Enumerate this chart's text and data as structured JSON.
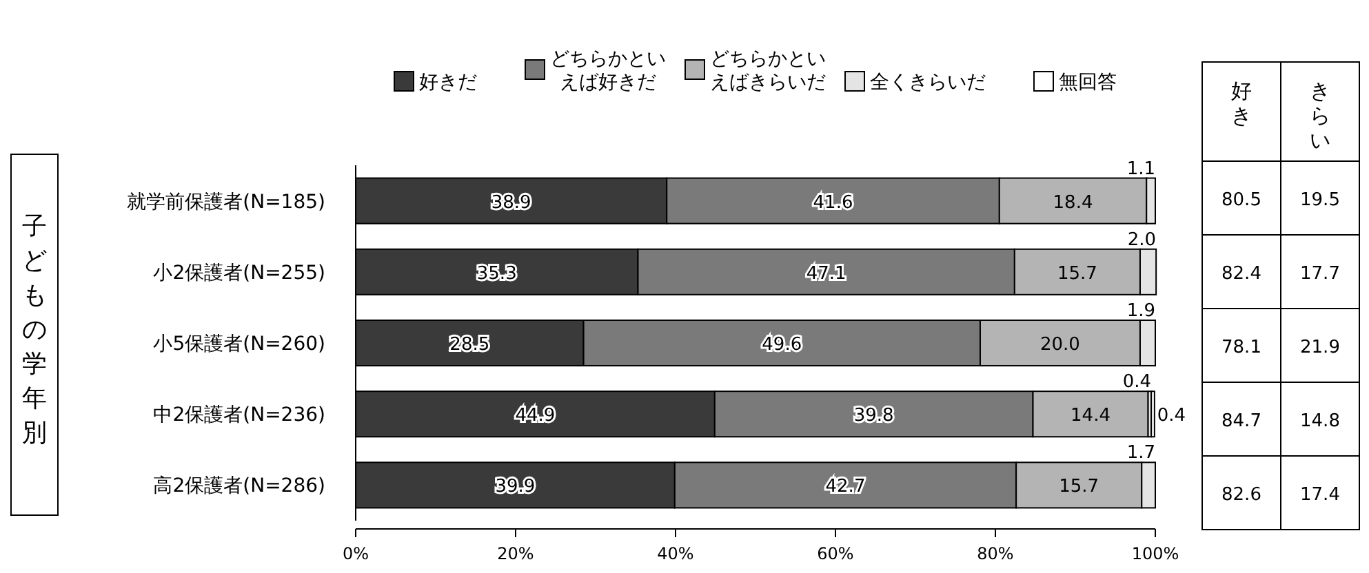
{
  "chart_data": [
    {
      "type": "bar",
      "orientation": "horizontal",
      "stacked": true,
      "ylabel": "子どもの学年別",
      "categories": [
        "就学前保護者(N=185)",
        "小2保護者(N=255)",
        "小5保護者(N=260)",
        "中2保護者(N=236)",
        "高2保護者(N=286)"
      ],
      "series": [
        {
          "name": "好きだ",
          "color": "#3a3a3a",
          "values": [
            38.9,
            35.3,
            28.5,
            44.9,
            39.9
          ],
          "value_labels": [
            "38.9",
            "35.3",
            "28.5",
            "44.9",
            "39.9"
          ]
        },
        {
          "name": "どちらかといえば好きだ",
          "color": "#7a7a7a",
          "values": [
            41.6,
            47.1,
            49.6,
            39.8,
            42.7
          ],
          "value_labels": [
            "41.6",
            "47.1",
            "49.6",
            "39.8",
            "42.7"
          ]
        },
        {
          "name": "どちらかといえばきらいだ",
          "color": "#b4b4b4",
          "values": [
            18.4,
            15.7,
            20.0,
            14.4,
            15.7
          ],
          "value_labels": [
            "18.4",
            "15.7",
            "20.0",
            "14.4",
            "15.7"
          ]
        },
        {
          "name": "全くきらいだ",
          "color": "#e4e4e4",
          "values": [
            1.1,
            2.0,
            1.9,
            0.4,
            1.7
          ],
          "value_labels": [
            "1.1",
            "2.0",
            "1.9",
            "0.4",
            "1.7"
          ]
        },
        {
          "name": "無回答",
          "color": "#ffffff",
          "values": [
            null,
            null,
            null,
            0.4,
            null
          ],
          "value_labels": [
            null,
            null,
            null,
            "0.4",
            null
          ]
        }
      ],
      "xlim": [
        0,
        100
      ],
      "xticks": [
        {
          "value": 0,
          "label": "0%"
        },
        {
          "value": 20,
          "label": "20%"
        },
        {
          "value": 40,
          "label": "40%"
        },
        {
          "value": 60,
          "label": "60%"
        },
        {
          "value": 80,
          "label": "80%"
        },
        {
          "value": 100,
          "label": "100%"
        }
      ],
      "legend": "top"
    },
    {
      "type": "other",
      "annotations": [
        "好き",
        "きらい",
        "80.5",
        "19.5",
        "82.4",
        "17.7",
        "78.1",
        "21.9",
        "84.7",
        "14.8",
        "82.6",
        "17.4"
      ]
    }
  ]
}
